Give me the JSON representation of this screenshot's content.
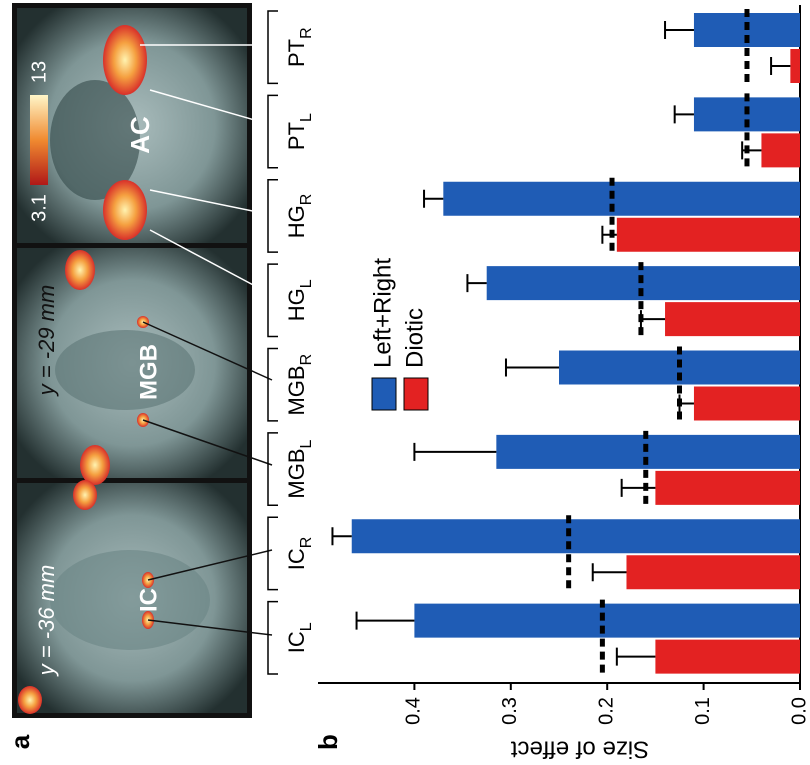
{
  "panel_a": {
    "label": "a",
    "slices": [
      {
        "coordinate": "y = -36 mm",
        "region": "IC"
      },
      {
        "coordinate": "y = -29 mm",
        "region": "MGB"
      },
      {
        "region": "AC"
      }
    ],
    "colorbar": {
      "min_label": "3.1",
      "max_label": "13"
    }
  },
  "chart_data": {
    "type": "bar",
    "panel_label": "b",
    "ylabel": "Size of effect",
    "categories": [
      {
        "name": "IC",
        "sub": "L"
      },
      {
        "name": "IC",
        "sub": "R"
      },
      {
        "name": "MGB",
        "sub": "L"
      },
      {
        "name": "MGB",
        "sub": "R"
      },
      {
        "name": "HG",
        "sub": "L"
      },
      {
        "name": "HG",
        "sub": "R"
      },
      {
        "name": "PT",
        "sub": "L"
      },
      {
        "name": "PT",
        "sub": "R"
      }
    ],
    "series": [
      {
        "name": "Left+Right",
        "color": "#1f5cb5",
        "values": [
          0.4,
          0.465,
          0.315,
          0.25,
          0.325,
          0.37,
          0.11,
          0.11
        ],
        "errors": [
          0.06,
          0.02,
          0.085,
          0.055,
          0.02,
          0.02,
          0.02,
          0.03
        ]
      },
      {
        "name": "Diotic",
        "color": "#e32222",
        "values": [
          0.15,
          0.18,
          0.15,
          0.11,
          0.14,
          0.19,
          0.04,
          0.01
        ],
        "errors": [
          0.04,
          0.035,
          0.035,
          0.015,
          0.025,
          0.015,
          0.02,
          0.02
        ]
      }
    ],
    "dashed_values": [
      0.205,
      0.24,
      0.16,
      0.125,
      0.165,
      0.195,
      0.055,
      0.055
    ],
    "ylim": [
      0,
      0.5
    ],
    "yticks": [
      {
        "value": 0,
        "label": "0.0"
      },
      0.1,
      0.2,
      0.3,
      0.4
    ]
  }
}
